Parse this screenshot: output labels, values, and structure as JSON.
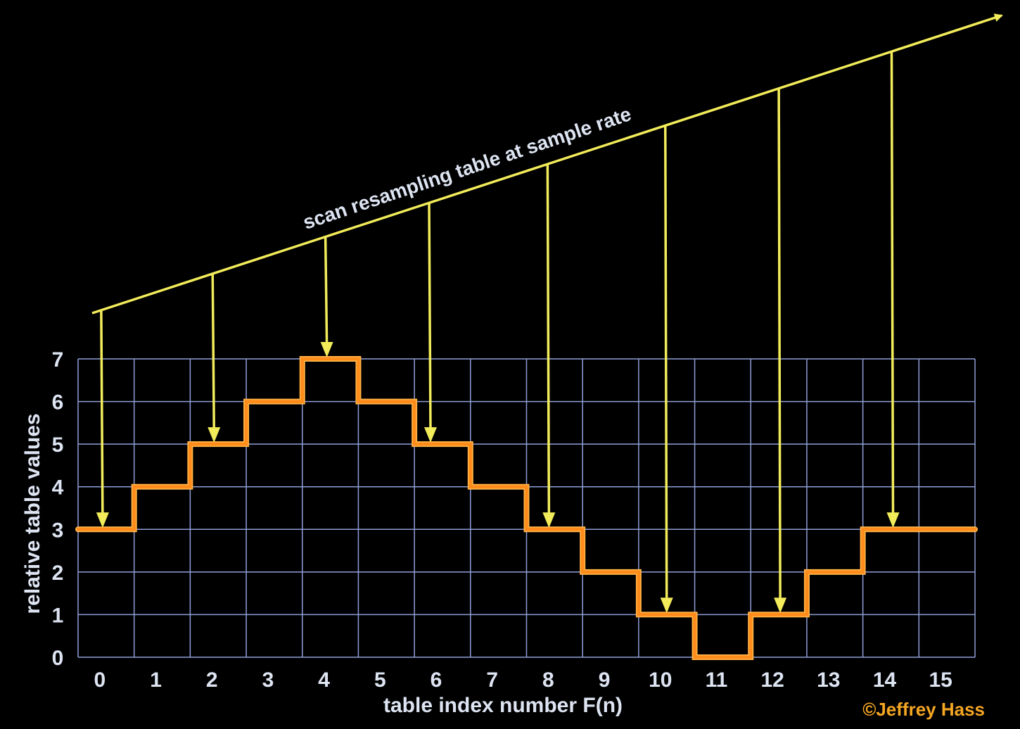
{
  "chart_data": {
    "type": "line",
    "step": true,
    "x": [
      0,
      1,
      2,
      3,
      4,
      5,
      6,
      7,
      8,
      9,
      10,
      11,
      12,
      13,
      14,
      15
    ],
    "values": [
      3,
      4,
      5,
      6,
      7,
      6,
      5,
      4,
      3,
      2,
      1,
      0,
      1,
      2,
      3,
      3
    ],
    "xlabel": "table index number F(n)",
    "ylabel": "relative table values",
    "x_ticks": [
      "0",
      "1",
      "2",
      "3",
      "4",
      "5",
      "6",
      "7",
      "8",
      "9",
      "10",
      "11",
      "12",
      "13",
      "14",
      "15"
    ],
    "y_ticks": [
      "0",
      "1",
      "2",
      "3",
      "4",
      "5",
      "6",
      "7"
    ],
    "ylim": [
      0,
      7
    ],
    "grid": true,
    "scan": {
      "label": "scan resampling table at sample rate",
      "sample_positions": [
        0,
        2,
        4,
        6,
        8,
        10,
        12,
        14
      ]
    },
    "colors": {
      "background": "#000000",
      "grid": "#8f9fd8",
      "step_line": "#ff8c1a",
      "step_outline": "#ffb347",
      "scan": "#f2ec5a",
      "text": "#dde4f2",
      "credit": "#f5a623"
    }
  },
  "credit": "©Jeffrey Hass"
}
